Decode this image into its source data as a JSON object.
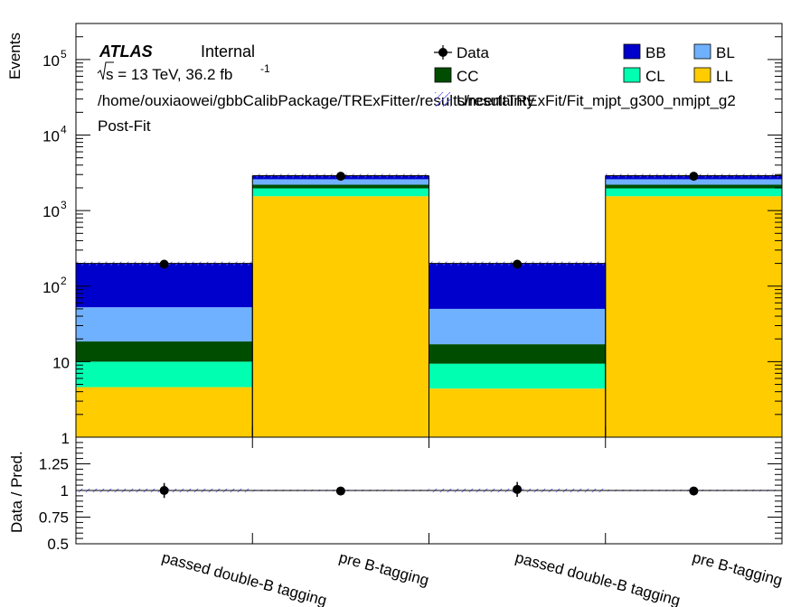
{
  "labels": {
    "atlas": "ATLAS",
    "internal": "Internal",
    "energy": "s = 13 TeV, 36.2 fb",
    "lumi_exp": "-1",
    "path": "/home/ouxiaowei/gbbCalibPackage/TRExFitter/results/resultTRExFit/Fit_mjpt_g300_nmjpt_g2",
    "stage": "Post-Fit"
  },
  "legend": {
    "data": "Data",
    "uncertainty": "Uncertainty",
    "items": [
      {
        "key": "BB",
        "label": "BB",
        "color": "#0000cc"
      },
      {
        "key": "BL",
        "label": "BL",
        "color": "#6fb1ff"
      },
      {
        "key": "CC",
        "label": "CC",
        "color": "#004d00"
      },
      {
        "key": "CL",
        "label": "CL",
        "color": "#00ffb0"
      },
      {
        "key": "LL",
        "label": "LL",
        "color": "#ffcc00"
      }
    ]
  },
  "chart_data": [
    {
      "type": "bar",
      "stacked": true,
      "yscale": "log",
      "ylim": [
        1,
        300000
      ],
      "ylabel": "Events",
      "categories": [
        "passed double-B tagging",
        "pre B-tagging",
        "passed double-B tagging",
        "pre B-tagging"
      ],
      "stack_order": [
        "LL",
        "CL",
        "CC",
        "BL",
        "BB"
      ],
      "series": [
        {
          "name": "LL",
          "values": [
            4.6,
            1550,
            4.4,
            1550
          ]
        },
        {
          "name": "CL",
          "values": [
            5.4,
            420,
            5.0,
            420
          ]
        },
        {
          "name": "CC",
          "values": [
            8.5,
            230,
            7.6,
            230
          ]
        },
        {
          "name": "BL",
          "values": [
            34,
            400,
            33,
            400
          ]
        },
        {
          "name": "BB",
          "values": [
            147,
            300,
            150,
            300
          ]
        }
      ],
      "data": [
        195,
        2850,
        195,
        2850
      ],
      "ytick_labels": [
        "1",
        "10",
        "10",
        "10",
        "10",
        "10"
      ],
      "ytick_exponents": [
        "",
        "",
        "2",
        "3",
        "4",
        "5"
      ]
    },
    {
      "type": "scatter",
      "ylabel": "Data / Pred.",
      "ylim": [
        0.5,
        1.5
      ],
      "categories": [
        "passed double-B tagging",
        "pre B-tagging",
        "passed double-B tagging",
        "pre B-tagging"
      ],
      "values": [
        1.0,
        0.995,
        1.01,
        0.995
      ],
      "errors": [
        0.07,
        0.02,
        0.07,
        0.02
      ],
      "band": [
        0.018,
        0.008,
        0.018,
        0.008
      ],
      "ytick_labels": [
        "0.5",
        "0.75",
        "1",
        "1.25"
      ]
    }
  ]
}
